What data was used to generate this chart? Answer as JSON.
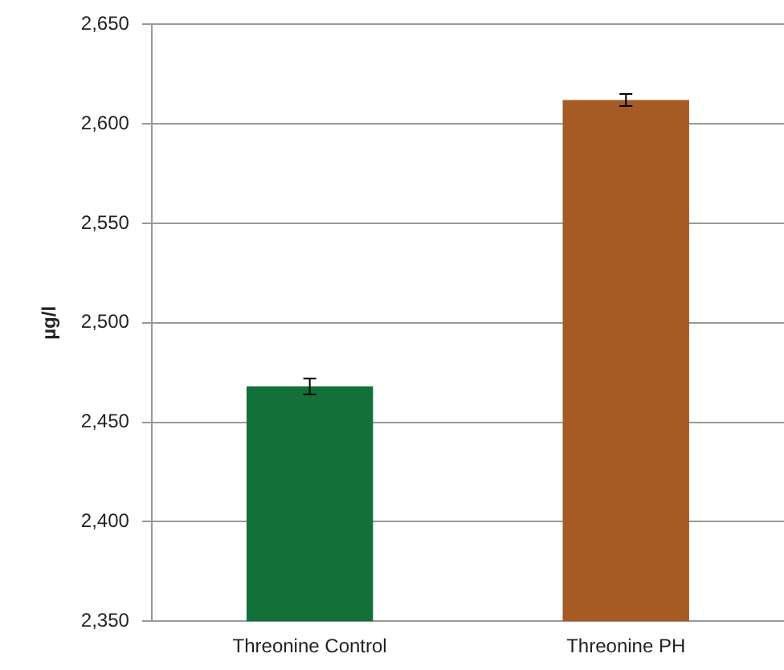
{
  "chart_data": {
    "type": "bar",
    "ylabel": "µg/l",
    "categories": [
      "Threonine Control",
      "Threonine PH"
    ],
    "values": [
      2468,
      2612
    ],
    "colors": [
      "#127038",
      "#a65a24"
    ],
    "errors": [
      4,
      3
    ],
    "ylim": [
      2350,
      2650
    ],
    "yticks": [
      {
        "value": 2350,
        "label": "2,350"
      },
      {
        "value": 2400,
        "label": "2,400"
      },
      {
        "value": 2450,
        "label": "2,450"
      },
      {
        "value": 2500,
        "label": "2,500"
      },
      {
        "value": 2550,
        "label": "2,550"
      },
      {
        "value": 2600,
        "label": "2,600"
      },
      {
        "value": 2650,
        "label": "2,650"
      }
    ],
    "grid": "y",
    "legend": false
  }
}
